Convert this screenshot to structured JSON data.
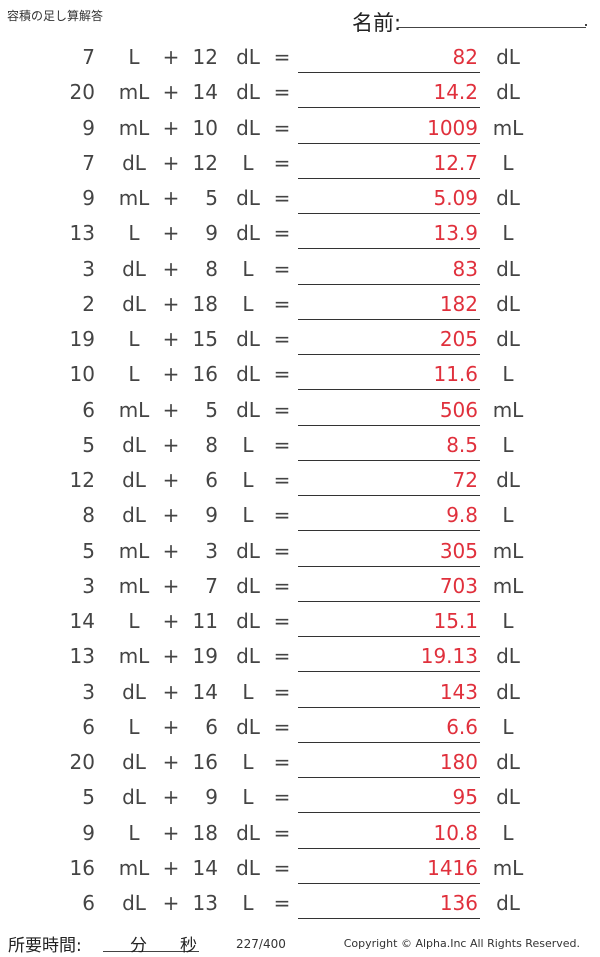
{
  "header": {
    "title": "容積の足し算解答",
    "name_label": "名前:"
  },
  "rows": [
    {
      "a": "7",
      "u1": "L",
      "b": "12",
      "u2": "dL",
      "answer": "82",
      "u3": "dL"
    },
    {
      "a": "20",
      "u1": "mL",
      "b": "14",
      "u2": "dL",
      "answer": "14.2",
      "u3": "dL"
    },
    {
      "a": "9",
      "u1": "mL",
      "b": "10",
      "u2": "dL",
      "answer": "1009",
      "u3": "mL"
    },
    {
      "a": "7",
      "u1": "dL",
      "b": "12",
      "u2": "L",
      "answer": "12.7",
      "u3": "L"
    },
    {
      "a": "9",
      "u1": "mL",
      "b": "5",
      "u2": "dL",
      "answer": "5.09",
      "u3": "dL"
    },
    {
      "a": "13",
      "u1": "L",
      "b": "9",
      "u2": "dL",
      "answer": "13.9",
      "u3": "L"
    },
    {
      "a": "3",
      "u1": "dL",
      "b": "8",
      "u2": "L",
      "answer": "83",
      "u3": "dL"
    },
    {
      "a": "2",
      "u1": "dL",
      "b": "18",
      "u2": "L",
      "answer": "182",
      "u3": "dL"
    },
    {
      "a": "19",
      "u1": "L",
      "b": "15",
      "u2": "dL",
      "answer": "205",
      "u3": "dL"
    },
    {
      "a": "10",
      "u1": "L",
      "b": "16",
      "u2": "dL",
      "answer": "11.6",
      "u3": "L"
    },
    {
      "a": "6",
      "u1": "mL",
      "b": "5",
      "u2": "dL",
      "answer": "506",
      "u3": "mL"
    },
    {
      "a": "5",
      "u1": "dL",
      "b": "8",
      "u2": "L",
      "answer": "8.5",
      "u3": "L"
    },
    {
      "a": "12",
      "u1": "dL",
      "b": "6",
      "u2": "L",
      "answer": "72",
      "u3": "dL"
    },
    {
      "a": "8",
      "u1": "dL",
      "b": "9",
      "u2": "L",
      "answer": "9.8",
      "u3": "L"
    },
    {
      "a": "5",
      "u1": "mL",
      "b": "3",
      "u2": "dL",
      "answer": "305",
      "u3": "mL"
    },
    {
      "a": "3",
      "u1": "mL",
      "b": "7",
      "u2": "dL",
      "answer": "703",
      "u3": "mL"
    },
    {
      "a": "14",
      "u1": "L",
      "b": "11",
      "u2": "dL",
      "answer": "15.1",
      "u3": "L"
    },
    {
      "a": "13",
      "u1": "mL",
      "b": "19",
      "u2": "dL",
      "answer": "19.13",
      "u3": "dL"
    },
    {
      "a": "3",
      "u1": "dL",
      "b": "14",
      "u2": "L",
      "answer": "143",
      "u3": "dL"
    },
    {
      "a": "6",
      "u1": "L",
      "b": "6",
      "u2": "dL",
      "answer": "6.6",
      "u3": "L"
    },
    {
      "a": "20",
      "u1": "dL",
      "b": "16",
      "u2": "L",
      "answer": "180",
      "u3": "dL"
    },
    {
      "a": "5",
      "u1": "dL",
      "b": "9",
      "u2": "L",
      "answer": "95",
      "u3": "dL"
    },
    {
      "a": "9",
      "u1": "L",
      "b": "18",
      "u2": "dL",
      "answer": "10.8",
      "u3": "L"
    },
    {
      "a": "16",
      "u1": "mL",
      "b": "14",
      "u2": "dL",
      "answer": "1416",
      "u3": "mL"
    },
    {
      "a": "6",
      "u1": "dL",
      "b": "13",
      "u2": "L",
      "answer": "136",
      "u3": "dL"
    }
  ],
  "symbols": {
    "plus": "+",
    "equals": "="
  },
  "footer": {
    "time_label": "所要時間:",
    "minutes_label": "分",
    "seconds_label": "秒",
    "page_number": "227/400",
    "copyright": "Copyright © Alpha.Inc All Rights Reserved."
  },
  "colors": {
    "answer": "#e0303c",
    "text": "#444444"
  }
}
